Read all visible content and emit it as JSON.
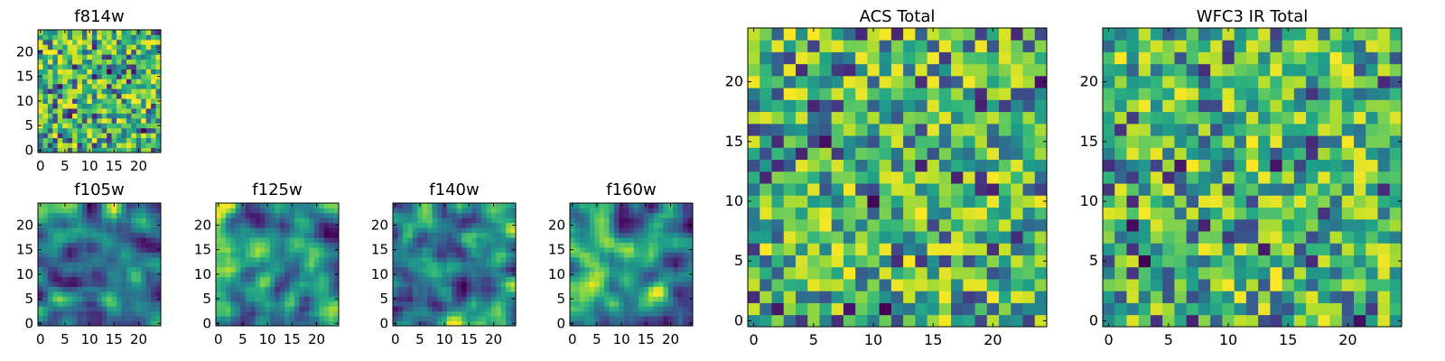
{
  "chart_data": [
    {
      "id": "f814w",
      "type": "heatmap",
      "title": "f814w",
      "grid_size": 25,
      "xlim": [
        -0.5,
        24.5
      ],
      "ylim": [
        -0.5,
        24.5
      ],
      "xticks": [
        0,
        5,
        10,
        15,
        20
      ],
      "yticks": [
        0,
        5,
        10,
        15,
        20
      ],
      "colormap": "viridis",
      "grid": false,
      "seed": 11,
      "smooth": 0
    },
    {
      "id": "f105w",
      "type": "heatmap",
      "title": "f105w",
      "grid_size": 25,
      "xlim": [
        -0.5,
        24.5
      ],
      "ylim": [
        -0.5,
        24.5
      ],
      "xticks": [
        0,
        5,
        10,
        15,
        20
      ],
      "yticks": [
        0,
        5,
        10,
        15,
        20
      ],
      "colormap": "viridis",
      "grid": false,
      "seed": 23,
      "smooth": 2
    },
    {
      "id": "f125w",
      "type": "heatmap",
      "title": "f125w",
      "grid_size": 25,
      "xlim": [
        -0.5,
        24.5
      ],
      "ylim": [
        -0.5,
        24.5
      ],
      "xticks": [
        0,
        5,
        10,
        15,
        20
      ],
      "yticks": [
        0,
        5,
        10,
        15,
        20
      ],
      "colormap": "viridis",
      "grid": false,
      "seed": 37,
      "smooth": 2
    },
    {
      "id": "f140w",
      "type": "heatmap",
      "title": "f140w",
      "grid_size": 25,
      "xlim": [
        -0.5,
        24.5
      ],
      "ylim": [
        -0.5,
        24.5
      ],
      "xticks": [
        0,
        5,
        10,
        15,
        20
      ],
      "yticks": [
        0,
        5,
        10,
        15,
        20
      ],
      "colormap": "viridis",
      "grid": false,
      "seed": 41,
      "smooth": 2
    },
    {
      "id": "f160w",
      "type": "heatmap",
      "title": "f160w",
      "grid_size": 25,
      "xlim": [
        -0.5,
        24.5
      ],
      "ylim": [
        -0.5,
        24.5
      ],
      "xticks": [
        0,
        5,
        10,
        15,
        20
      ],
      "yticks": [
        0,
        5,
        10,
        15,
        20
      ],
      "colormap": "viridis",
      "grid": false,
      "seed": 53,
      "smooth": 2
    },
    {
      "id": "acs_total",
      "type": "heatmap",
      "title": "ACS Total",
      "grid_size": 25,
      "xlim": [
        -0.5,
        24.5
      ],
      "ylim": [
        -0.5,
        24.5
      ],
      "xticks": [
        0,
        5,
        10,
        15,
        20
      ],
      "yticks": [
        0,
        5,
        10,
        15,
        20
      ],
      "colormap": "viridis",
      "grid": false,
      "seed": 67,
      "smooth": 0
    },
    {
      "id": "wfc3_ir_total",
      "type": "heatmap",
      "title": "WFC3 IR Total",
      "grid_size": 25,
      "xlim": [
        -0.5,
        24.5
      ],
      "ylim": [
        -0.5,
        24.5
      ],
      "xticks": [
        0,
        5,
        10,
        15,
        20
      ],
      "yticks": [
        0,
        5,
        10,
        15,
        20
      ],
      "colormap": "viridis",
      "grid": false,
      "seed": 79,
      "smooth": 0
    }
  ]
}
